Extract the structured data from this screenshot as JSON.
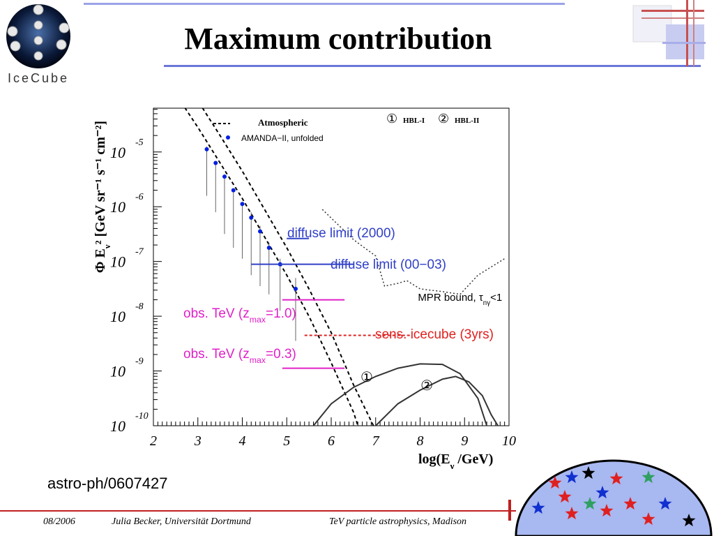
{
  "slide": {
    "title": "Maximum contribution",
    "reference": "astro-ph/0607427",
    "logo_text": "IceCube",
    "colors": {
      "accent_line": "#6a76d8",
      "footer_line": "#d02020",
      "dome_fill": "#a8b8f0"
    }
  },
  "footer": {
    "date": "08/2006",
    "author": "Julia Becker, Universität Dortmund",
    "event": "TeV particle astrophysics, Madison"
  },
  "chart_data": {
    "type": "line",
    "xlabel": "log(E",
    "xlabel_sub": "ν",
    "xlabel_tail": " /GeV)",
    "ylabel": "Φ E",
    "ylabel_sub": "ν",
    "ylabel_tail": "² [GeV sr⁻¹ s⁻¹ cm⁻²]",
    "xlim": [
      2,
      10
    ],
    "ylim_log10": [
      -10,
      -4.2
    ],
    "x_ticks": [
      "2",
      "3",
      "4",
      "5",
      "6",
      "7",
      "8",
      "9",
      "10"
    ],
    "y_ticks": [
      {
        "base": "10",
        "exp": "-5",
        "value": -5
      },
      {
        "base": "10",
        "exp": "-6",
        "value": -6
      },
      {
        "base": "10",
        "exp": "-7",
        "value": -7
      },
      {
        "base": "10",
        "exp": "-8",
        "value": -8
      },
      {
        "base": "10",
        "exp": "-9",
        "value": -9
      },
      {
        "base": "10",
        "exp": "-10",
        "value": -10
      }
    ],
    "legend": {
      "atmospheric": "Atmospheric",
      "amanda": "AMANDA−II, unfolded",
      "hbl1_mark": "①",
      "hbl1": "HBL-I",
      "hbl2_mark": "②",
      "hbl2": "HBL-II"
    },
    "series": [
      {
        "name": "Atmospheric",
        "style": "dashed",
        "color": "#000000",
        "lower": [
          [
            2.55,
            -4.0
          ],
          [
            3.0,
            -4.55
          ],
          [
            3.5,
            -5.2
          ],
          [
            4.0,
            -5.85
          ],
          [
            4.5,
            -6.55
          ],
          [
            5.0,
            -7.25
          ],
          [
            5.5,
            -8.0
          ],
          [
            6.0,
            -8.85
          ],
          [
            6.5,
            -9.75
          ],
          [
            6.6,
            -10.0
          ]
        ],
        "upper": [
          [
            2.95,
            -4.0
          ],
          [
            3.5,
            -4.7
          ],
          [
            4.0,
            -5.35
          ],
          [
            4.5,
            -6.05
          ],
          [
            5.0,
            -6.75
          ],
          [
            5.5,
            -7.5
          ],
          [
            6.0,
            -8.3
          ],
          [
            6.5,
            -9.25
          ],
          [
            6.95,
            -10.0
          ]
        ]
      },
      {
        "name": "AMANDA−II, unfolded",
        "style": "points",
        "color": "#0020e0",
        "points": [
          [
            3.2,
            -4.95
          ],
          [
            3.4,
            -5.2
          ],
          [
            3.6,
            -5.45
          ],
          [
            3.8,
            -5.7
          ],
          [
            4.0,
            -5.95
          ],
          [
            4.2,
            -6.2
          ],
          [
            4.4,
            -6.45
          ],
          [
            4.6,
            -6.75
          ],
          [
            4.85,
            -7.05
          ],
          [
            5.2,
            -7.5
          ]
        ],
        "error_low": [
          -5.8,
          -6.1,
          -6.5,
          -6.75,
          -6.95,
          -7.25,
          -7.45,
          -7.6,
          -7.9,
          -8.45
        ],
        "error_high": [
          -4.9,
          -5.2,
          -5.45,
          -5.7,
          -5.95,
          -6.1,
          -6.35,
          -6.65,
          -6.95,
          -7.3
        ]
      },
      {
        "name": "MPR bound, τ",
        "label_sub": "nγ",
        "label_tail": "<1",
        "style": "dotted",
        "color": "#333333",
        "points": [
          [
            5.8,
            -6.05
          ],
          [
            6.5,
            -6.6
          ],
          [
            7.0,
            -6.9
          ],
          [
            7.2,
            -7.45
          ],
          [
            7.5,
            -7.4
          ],
          [
            7.7,
            -7.35
          ],
          [
            8.0,
            -7.5
          ],
          [
            8.5,
            -7.55
          ],
          [
            8.9,
            -7.6
          ],
          [
            9.3,
            -7.25
          ],
          [
            9.9,
            -6.95
          ]
        ]
      },
      {
        "name": "HBL-I",
        "style": "solid",
        "color": "#333333",
        "points": [
          [
            5.6,
            -10.0
          ],
          [
            6.0,
            -9.6
          ],
          [
            6.5,
            -9.3
          ],
          [
            7.0,
            -9.1
          ],
          [
            7.5,
            -8.95
          ],
          [
            8.0,
            -8.87
          ],
          [
            8.5,
            -8.88
          ],
          [
            8.9,
            -9.05
          ],
          [
            9.3,
            -9.5
          ],
          [
            9.5,
            -10.0
          ]
        ]
      },
      {
        "name": "HBL-II",
        "style": "solid",
        "color": "#333333",
        "points": [
          [
            7.0,
            -10.0
          ],
          [
            7.5,
            -9.6
          ],
          [
            8.0,
            -9.35
          ],
          [
            8.5,
            -9.15
          ],
          [
            8.8,
            -9.1
          ],
          [
            9.1,
            -9.2
          ],
          [
            9.4,
            -9.45
          ],
          [
            9.6,
            -9.8
          ],
          [
            9.75,
            -10.0
          ]
        ]
      }
    ],
    "limits": [
      {
        "label": "diffuse limit (2000)",
        "color": "#3040c8",
        "x": [
          5.0,
          5.5
        ],
        "y": -6.58
      },
      {
        "label": "diffuse limit (00−03)",
        "color": "#3040c8",
        "x": [
          4.2,
          6.5
        ],
        "y": -7.05
      },
      {
        "label": "obs. TeV (z",
        "label_sub": "max",
        "label_tail": "=1.0)",
        "color": "#e020c8",
        "x": [
          4.9,
          6.3
        ],
        "y": -7.7
      },
      {
        "label": "obs. TeV (z",
        "label_sub": "max",
        "label_tail": "=0.3)",
        "color": "#e020c8",
        "x": [
          4.9,
          6.3
        ],
        "y": -8.95
      },
      {
        "label": "sens. icecube (3yrs)",
        "color": "#e02020",
        "x": [
          5.4,
          7.8
        ],
        "y": -8.35,
        "style": "dashed"
      }
    ],
    "curve_markers": [
      {
        "label": "①",
        "x": 6.8,
        "y": -9.2
      },
      {
        "label": "②",
        "x": 8.15,
        "y": -9.35
      }
    ],
    "grid": false
  }
}
